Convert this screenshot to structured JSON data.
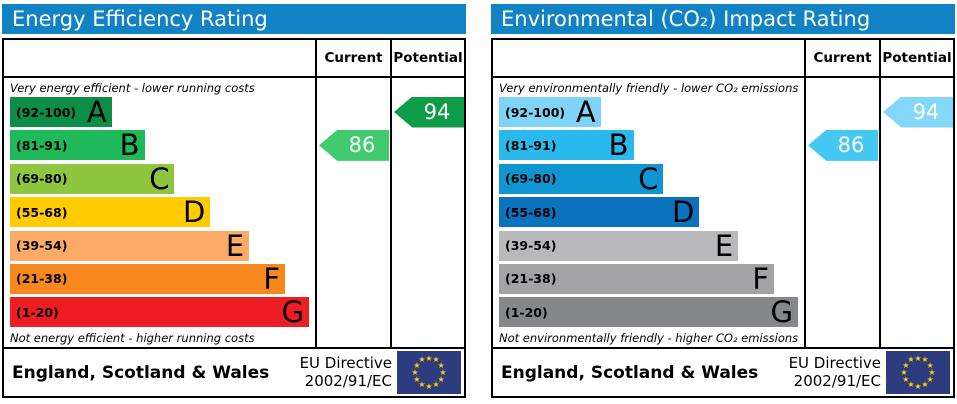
{
  "panels": [
    {
      "title": "Energy Efficiency Rating",
      "title_bg": "#1182c4",
      "columns": {
        "current": "Current",
        "potential": "Potential"
      },
      "top_caption": "Very energy efficient - lower running costs",
      "bottom_caption": "Not energy efficient - higher running costs",
      "bands": [
        {
          "range": "(92-100)",
          "letter": "A",
          "color": "#0c8e46",
          "width_pct": 34
        },
        {
          "range": "(81-91)",
          "letter": "B",
          "color": "#1fb95a",
          "width_pct": 45
        },
        {
          "range": "(69-80)",
          "letter": "C",
          "color": "#8ec63f",
          "width_pct": 55
        },
        {
          "range": "(55-68)",
          "letter": "D",
          "color": "#ffcc00",
          "width_pct": 67
        },
        {
          "range": "(39-54)",
          "letter": "E",
          "color": "#fcaa65",
          "width_pct": 80
        },
        {
          "range": "(21-38)",
          "letter": "F",
          "color": "#f6881d",
          "width_pct": 92
        },
        {
          "range": "(1-20)",
          "letter": "G",
          "color": "#ee1c23",
          "width_pct": 100
        }
      ],
      "current": {
        "value": "86",
        "band_index": 1,
        "color": "#41ca6e"
      },
      "potential": {
        "value": "94",
        "band_index": 0,
        "color": "#0e9c49"
      },
      "footer": {
        "region": "England, Scotland & Wales",
        "directive_line1": "EU Directive",
        "directive_line2": "2002/91/EC"
      },
      "flag": {
        "bg": "#2c3c7e",
        "star_color": "#ffcc00"
      }
    },
    {
      "title": "Environmental (CO₂) Impact Rating",
      "title_bg": "#1182c4",
      "columns": {
        "current": "Current",
        "potential": "Potential"
      },
      "top_caption": "Very environmentally friendly - lower CO₂ emissions",
      "bottom_caption": "Not environmentally friendly - higher CO₂ emissions",
      "bands": [
        {
          "range": "(92-100)",
          "letter": "A",
          "color": "#7ed3f7",
          "width_pct": 34
        },
        {
          "range": "(81-91)",
          "letter": "B",
          "color": "#29b9ec",
          "width_pct": 45
        },
        {
          "range": "(69-80)",
          "letter": "C",
          "color": "#0f95d2",
          "width_pct": 55
        },
        {
          "range": "(55-68)",
          "letter": "D",
          "color": "#0b73be",
          "width_pct": 67
        },
        {
          "range": "(39-54)",
          "letter": "E",
          "color": "#b9b9bb",
          "width_pct": 80
        },
        {
          "range": "(21-38)",
          "letter": "F",
          "color": "#a3a3a5",
          "width_pct": 92
        },
        {
          "range": "(1-20)",
          "letter": "G",
          "color": "#85878a",
          "width_pct": 100
        }
      ],
      "current": {
        "value": "86",
        "band_index": 1,
        "color": "#45c8f2"
      },
      "potential": {
        "value": "94",
        "band_index": 0,
        "color": "#84d7f8"
      },
      "footer": {
        "region": "England, Scotland & Wales",
        "directive_line1": "EU Directive",
        "directive_line2": "2002/91/EC"
      },
      "flag": {
        "bg": "#2c3c7e",
        "star_color": "#ffcc00"
      }
    }
  ],
  "chart_data": [
    {
      "type": "bar",
      "orientation": "horizontal",
      "title": "Energy Efficiency Rating",
      "categories": [
        "A (92-100)",
        "B (81-91)",
        "C (69-80)",
        "D (55-68)",
        "E (39-54)",
        "F (21-38)",
        "G (1-20)"
      ],
      "values": [
        34,
        45,
        55,
        67,
        80,
        92,
        100
      ],
      "values_note": "bar lengths as % of chart width (fixed EPC band scale)",
      "current_rating": 86,
      "current_band": "B",
      "potential_rating": 94,
      "potential_band": "A",
      "column_headers": [
        "Current",
        "Potential"
      ],
      "annotations": [
        "Very energy efficient - lower running costs",
        "Not energy efficient - higher running costs"
      ],
      "footer": "England, Scotland & Wales | EU Directive 2002/91/EC"
    },
    {
      "type": "bar",
      "orientation": "horizontal",
      "title": "Environmental (CO₂) Impact Rating",
      "categories": [
        "A (92-100)",
        "B (81-91)",
        "C (69-80)",
        "D (55-68)",
        "E (39-54)",
        "F (21-38)",
        "G (1-20)"
      ],
      "values": [
        34,
        45,
        55,
        67,
        80,
        92,
        100
      ],
      "values_note": "bar lengths as % of chart width (fixed EPC band scale)",
      "current_rating": 86,
      "current_band": "B",
      "potential_rating": 94,
      "potential_band": "A",
      "column_headers": [
        "Current",
        "Potential"
      ],
      "annotations": [
        "Very environmentally friendly - lower CO₂ emissions",
        "Not environmentally friendly - higher CO₂ emissions"
      ],
      "footer": "England, Scotland & Wales | EU Directive 2002/91/EC"
    }
  ]
}
